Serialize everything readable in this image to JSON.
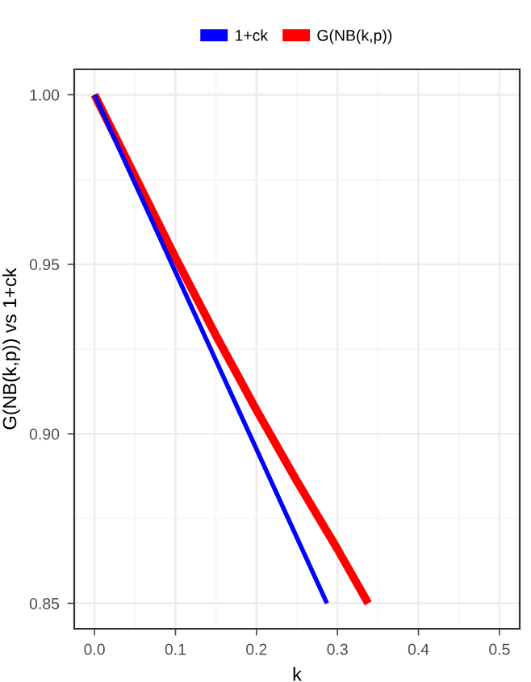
{
  "chart_data": {
    "type": "line",
    "xlabel": "k",
    "ylabel": "G(NB(k,p)) vs 1+ck",
    "series": [
      {
        "name": "1+ck",
        "color": "#0000ff",
        "x": [
          0,
          0.287
        ],
        "values": [
          1.0,
          0.85
        ]
      },
      {
        "name": "G(NB(k,p))",
        "color": "#ff0000",
        "x": [
          0,
          0.05,
          0.1,
          0.15,
          0.2,
          0.25,
          0.3,
          0.338
        ],
        "values": [
          1.0,
          0.976,
          0.952,
          0.929,
          0.907,
          0.886,
          0.866,
          0.85
        ]
      }
    ],
    "xlim": [
      -0.025,
      0.525
    ],
    "ylim": [
      0.8425,
      1.0075
    ],
    "xticks": [
      {
        "value": 0,
        "label": "0.0"
      },
      {
        "value": 0.1,
        "label": "0.1"
      },
      {
        "value": 0.2,
        "label": "0.2"
      },
      {
        "value": 0.3,
        "label": "0.3"
      },
      {
        "value": 0.4,
        "label": "0.4"
      },
      {
        "value": 0.5,
        "label": "0.5"
      }
    ],
    "yticks": [
      0.85,
      {
        "value": 0.9,
        "label": "0.90"
      },
      0.95,
      {
        "value": 1.0,
        "label": "1.00"
      }
    ],
    "grid": true,
    "legend": "top",
    "line_style": "solid",
    "marker": "none"
  }
}
